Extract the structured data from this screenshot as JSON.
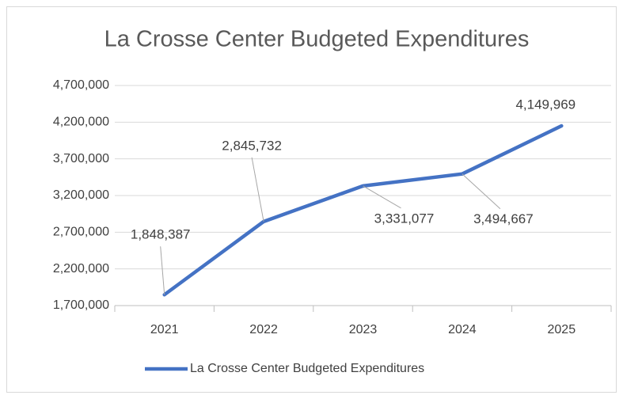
{
  "chart_data": {
    "type": "line",
    "title": "La Crosse Center Budgeted Expenditures",
    "categories": [
      "2021",
      "2022",
      "2023",
      "2024",
      "2025"
    ],
    "series": [
      {
        "name": "La Crosse Center Budgeted Expenditures",
        "color": "#4472c4",
        "values": [
          1848387,
          2845732,
          3331077,
          3494667,
          4149969
        ],
        "value_labels": [
          "1,848,387",
          "2,845,732",
          "3,331,077",
          "3,494,667",
          "4,149,969"
        ]
      }
    ],
    "ylim": [
      1700000,
      4700000
    ],
    "yticks": [
      {
        "value": 1700000,
        "label": "1,700,000"
      },
      {
        "value": 2200000,
        "label": "2,200,000"
      },
      {
        "value": 2700000,
        "label": "2,700,000"
      },
      {
        "value": 3200000,
        "label": "3,200,000"
      },
      {
        "value": 3700000,
        "label": "3,700,000"
      },
      {
        "value": 4200000,
        "label": "4,200,000"
      },
      {
        "value": 4700000,
        "label": "4,700,000"
      }
    ],
    "grid": true,
    "legend": "bottom"
  }
}
